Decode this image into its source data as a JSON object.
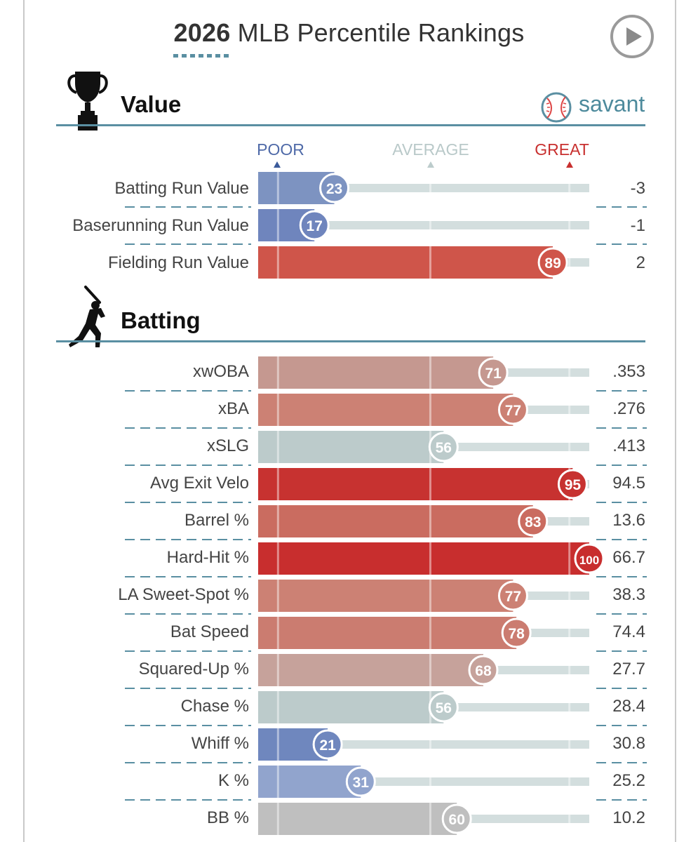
{
  "title": {
    "year": "2026",
    "text": "MLB Percentile Rankings"
  },
  "brand": {
    "name": "savant"
  },
  "icons": {
    "play": "play-icon",
    "trophy": "trophy-icon",
    "batter": "batter-icon",
    "logo": "baseball-logo-icon"
  },
  "scale": {
    "poor": "POOR",
    "average": "AVERAGE",
    "great": "GREAT"
  },
  "colors": {
    "poor": "#4a6eaa",
    "average": "#bccccc",
    "great": "#c8302f",
    "track": "#d3dede",
    "accent": "#5a8fa2"
  },
  "chart_data": {
    "type": "bar",
    "orientation": "horizontal",
    "xlim": [
      0,
      100
    ],
    "sections": [
      {
        "title": "Value",
        "metrics": [
          {
            "label": "Batting Run Value",
            "percentile": 23,
            "value": "-3",
            "color": "#7d93c1"
          },
          {
            "label": "Baserunning Run Value",
            "percentile": 17,
            "value": "-1",
            "color": "#6f85bd"
          },
          {
            "label": "Fielding Run Value",
            "percentile": 89,
            "value": "2",
            "color": "#cf554a"
          }
        ]
      },
      {
        "title": "Batting",
        "metrics": [
          {
            "label": "xwOBA",
            "percentile": 71,
            "value": ".353",
            "color": "#c59890"
          },
          {
            "label": "xBA",
            "percentile": 77,
            "value": ".276",
            "color": "#cc8174"
          },
          {
            "label": "xSLG",
            "percentile": 56,
            "value": ".413",
            "color": "#bccbcb"
          },
          {
            "label": "Avg Exit Velo",
            "percentile": 95,
            "value": "94.5",
            "color": "#c73230"
          },
          {
            "label": "Barrel %",
            "percentile": 83,
            "value": "13.6",
            "color": "#ca6c60"
          },
          {
            "label": "Hard-Hit %",
            "percentile": 100,
            "value": "66.7",
            "color": "#c82e2e"
          },
          {
            "label": "LA Sweet-Spot %",
            "percentile": 77,
            "value": "38.3",
            "color": "#cc8174"
          },
          {
            "label": "Bat Speed",
            "percentile": 78,
            "value": "74.4",
            "color": "#cb7c70"
          },
          {
            "label": "Squared-Up %",
            "percentile": 68,
            "value": "27.7",
            "color": "#c6a29b"
          },
          {
            "label": "Chase %",
            "percentile": 56,
            "value": "28.4",
            "color": "#bccbcb"
          },
          {
            "label": "Whiff %",
            "percentile": 21,
            "value": "30.8",
            "color": "#6f87be"
          },
          {
            "label": "K %",
            "percentile": 31,
            "value": "25.2",
            "color": "#91a4cd"
          },
          {
            "label": "BB %",
            "percentile": 60,
            "value": "10.2",
            "color": "#bfbfbf"
          }
        ]
      }
    ]
  }
}
